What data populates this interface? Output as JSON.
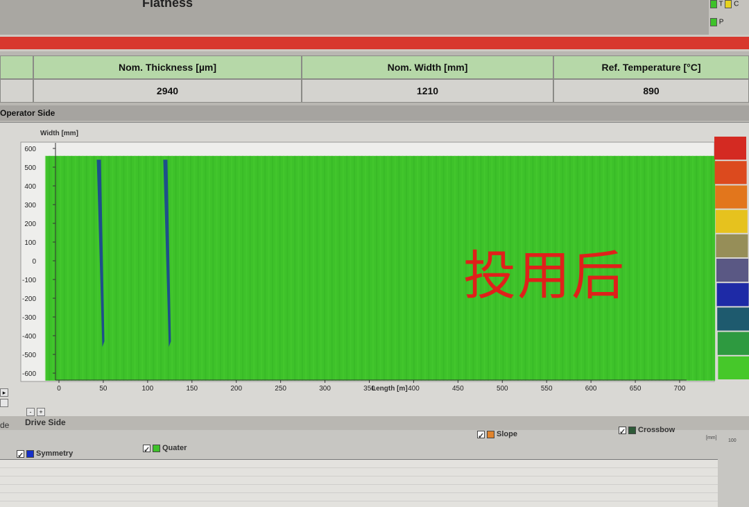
{
  "header": {
    "title": "Flatness",
    "legend_t": "T",
    "legend_c": "C",
    "legend_p": "P"
  },
  "params": {
    "headers": [
      "Nom. Thickness [µm]",
      "Nom. Width [mm]",
      "Ref. Temperature [°C]"
    ],
    "values": [
      "2940",
      "1210",
      "890"
    ]
  },
  "panel": {
    "operator_side": "Operator Side",
    "drive_side": "Drive Side",
    "drive_side_left_fragment": "de",
    "zoom_minus": "-",
    "zoom_plus": "+"
  },
  "overlay_text": "投用后",
  "chart_data": {
    "type": "heatmap",
    "xlabel": "Length [m]",
    "ylabel": "Width [mm]",
    "xlim": [
      0,
      740
    ],
    "ylim": [
      -600,
      600
    ],
    "x_ticks": [
      "0",
      "50",
      "100",
      "150",
      "200",
      "250",
      "300",
      "350",
      "400",
      "450",
      "500",
      "550",
      "600",
      "650",
      "700"
    ],
    "y_ticks": [
      "600",
      "500",
      "400",
      "300",
      "200",
      "100",
      "0",
      "-100",
      "-200",
      "-300",
      "-400",
      "-500",
      "-600"
    ],
    "dominant_color": "#3ec22a",
    "streaks": [
      {
        "length": 45,
        "color": "#1d4f8a"
      },
      {
        "length": 120,
        "color": "#1d4f8a"
      }
    ],
    "colorscale": [
      "#d42a22",
      "#dc4a1e",
      "#e2761c",
      "#e6c21e",
      "#968e58",
      "#5a5884",
      "#1e2aa6",
      "#1e5a6e",
      "#2e9a40",
      "#46c82a"
    ]
  },
  "lower": {
    "legend": [
      {
        "label": "Symmetry",
        "color": "#1630c8"
      },
      {
        "label": "Quater",
        "color": "#3ec22a"
      },
      {
        "label": "Slope",
        "color": "#e0842e"
      },
      {
        "label": "Crossbow",
        "color": "#2e5a38"
      }
    ],
    "unit": "[mm]",
    "ytick_top": "100"
  }
}
